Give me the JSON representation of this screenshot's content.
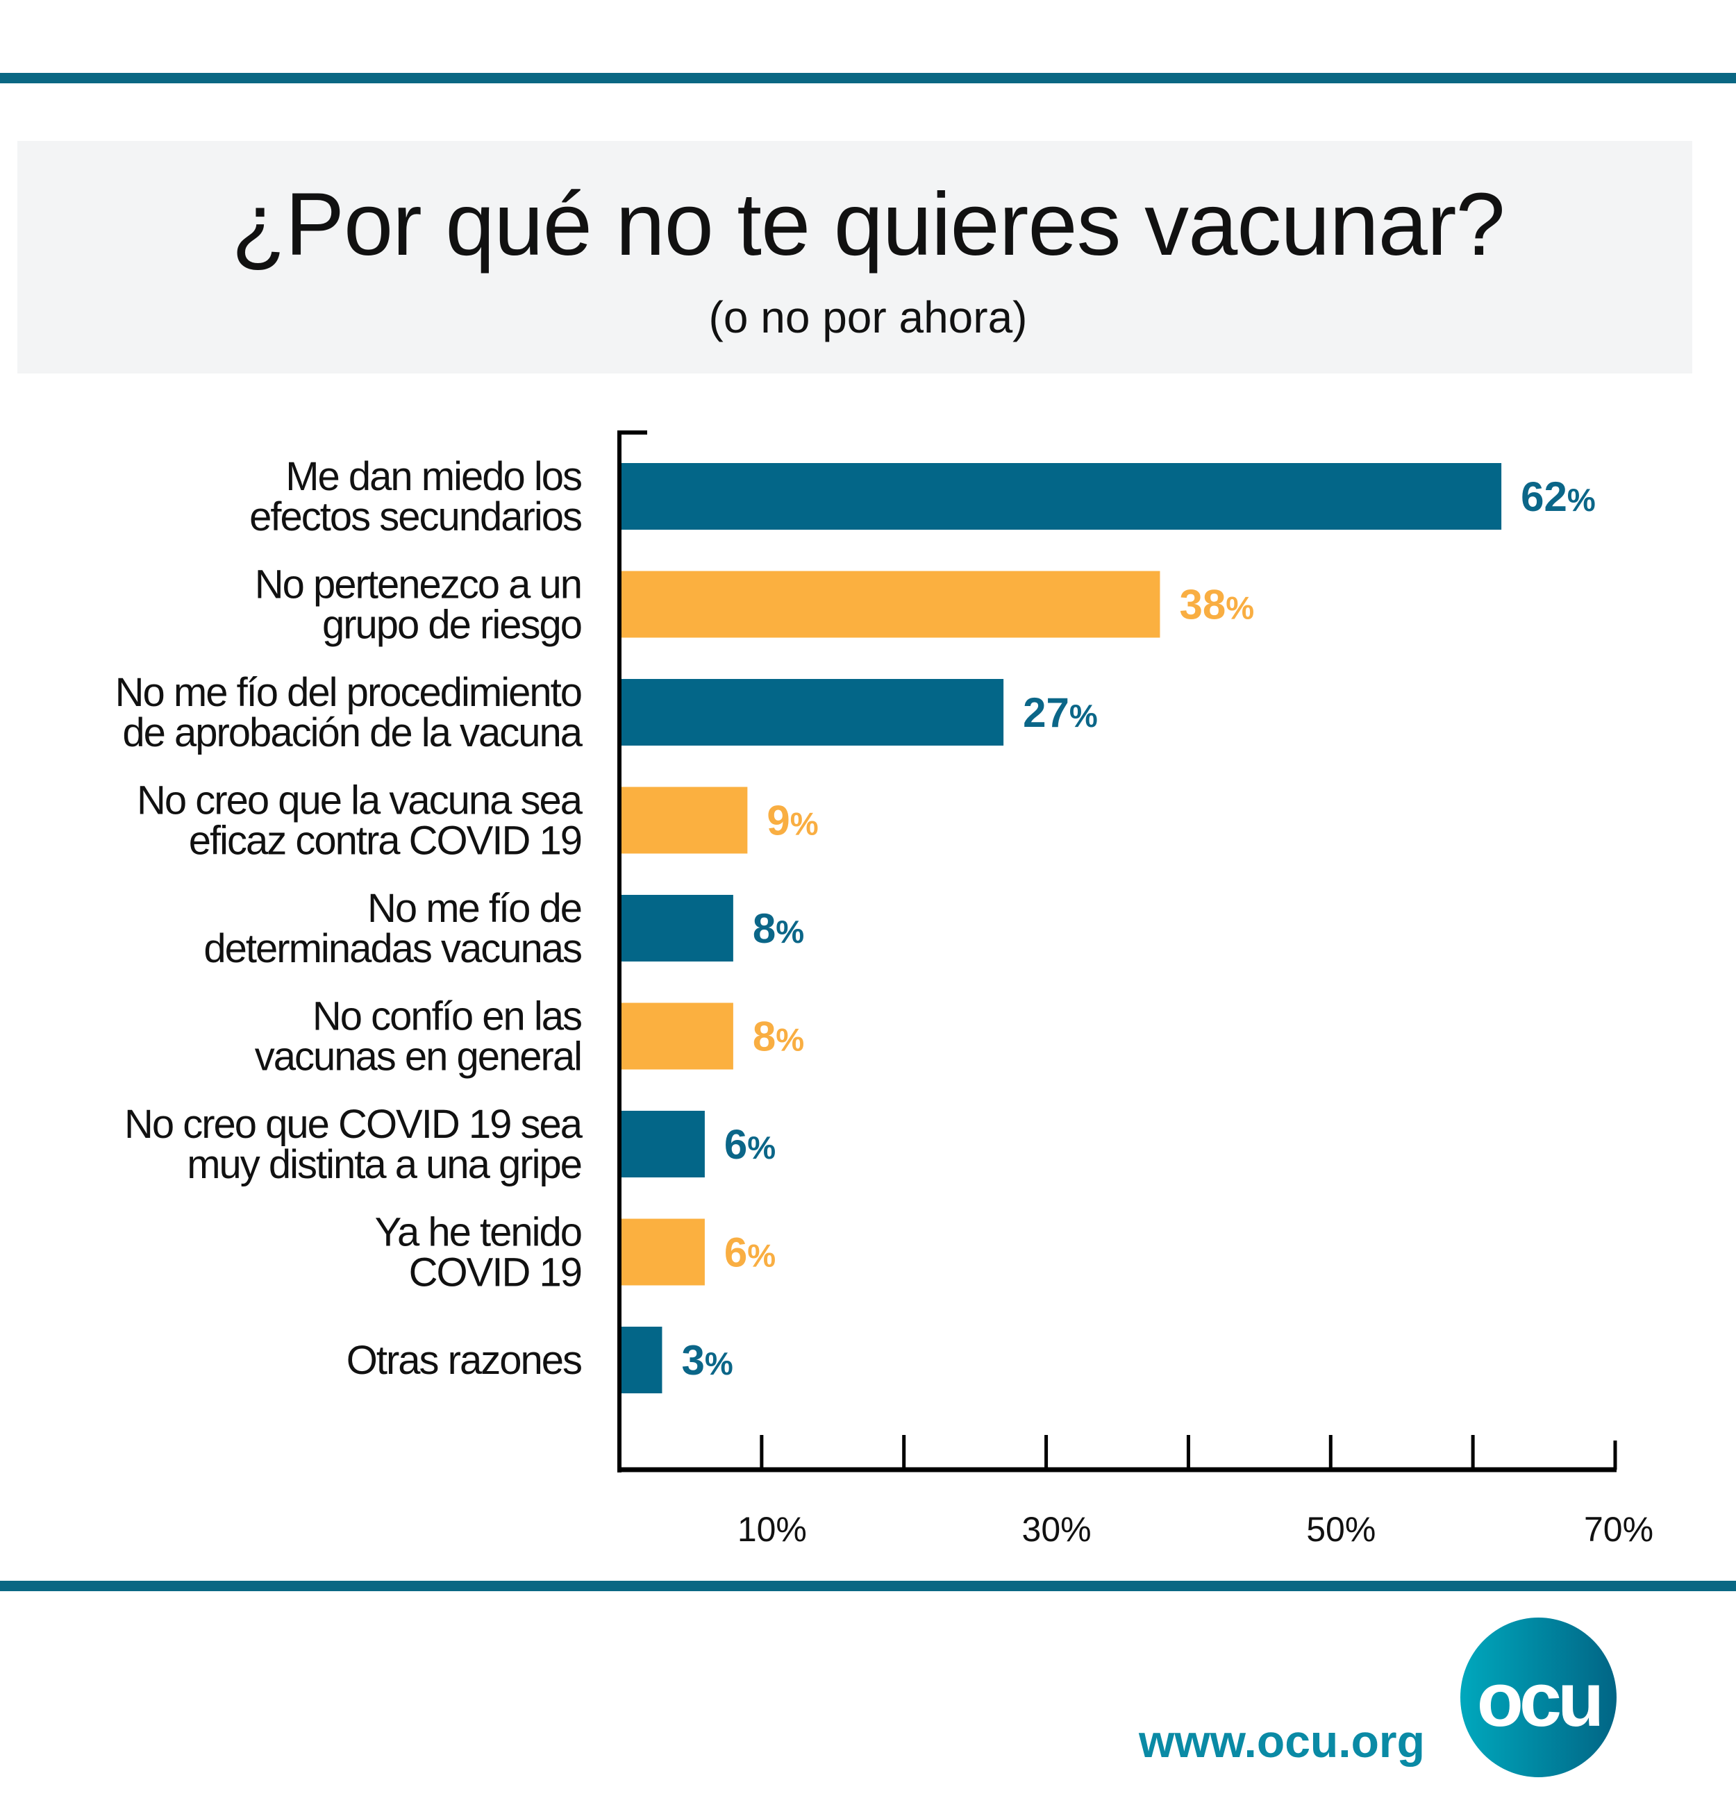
{
  "title": "¿Por qué no te quieres vacunar?",
  "subtitle": "(o no por ahora)",
  "footer": {
    "url": "www.ocu.org",
    "logo_text": "ocu"
  },
  "colors": {
    "blue": "#036688",
    "orange": "#FBB040",
    "rule": "#0a6783"
  },
  "chart_data": {
    "type": "bar",
    "orientation": "horizontal",
    "title": "¿Por qué no te quieres vacunar?",
    "subtitle": "(o no por ahora)",
    "categories": [
      [
        "Me dan miedo los",
        "efectos secundarios"
      ],
      [
        "No pertenezco a un",
        "grupo de riesgo"
      ],
      [
        "No me fío del procedimiento",
        "de aprobación de la vacuna"
      ],
      [
        "No creo que la vacuna sea",
        "eficaz contra COVID 19"
      ],
      [
        "No me fío de",
        "determinadas vacunas"
      ],
      [
        "No confío en las",
        "vacunas en general"
      ],
      [
        "No creo que COVID 19 sea",
        "muy distinta a una gripe"
      ],
      [
        "Ya he tenido",
        "COVID 19"
      ],
      [
        "Otras razones"
      ]
    ],
    "values": [
      62,
      38,
      27,
      9,
      8,
      8,
      6,
      6,
      3
    ],
    "value_labels": [
      "62",
      "38",
      "27",
      "9",
      "8",
      "8",
      "6",
      "6",
      "3"
    ],
    "unit": "%",
    "bar_colors": [
      "#036688",
      "#FBB040",
      "#036688",
      "#FBB040",
      "#036688",
      "#FBB040",
      "#036688",
      "#FBB040",
      "#036688"
    ],
    "xlim": [
      0,
      70
    ],
    "xticks": [
      10,
      20,
      30,
      40,
      50,
      60,
      70
    ],
    "xtick_labels": {
      "10": "10%",
      "30": "30%",
      "50": "50%",
      "70": "70%"
    },
    "grid": false
  }
}
